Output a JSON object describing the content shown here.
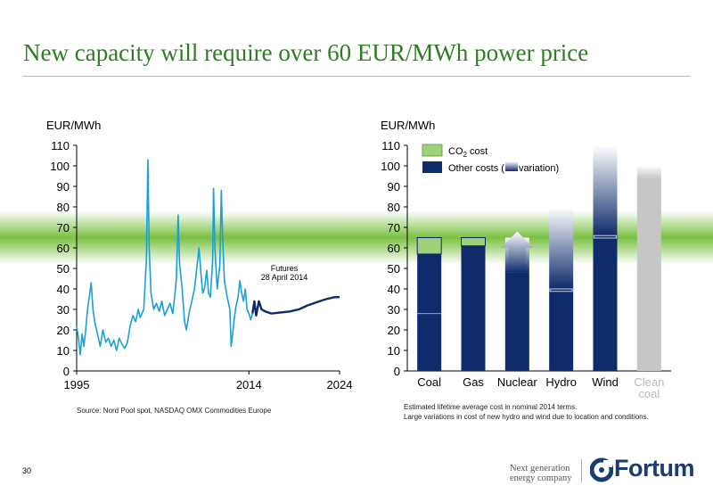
{
  "slide": {
    "title": "New capacity will require over 60 EUR/MWh power price",
    "page_number": "30",
    "source_left": "Source: Nord Pool spot, NASDAQ OMX Commodities Europe",
    "footnote_right": [
      "Estimated lifetime average cost in nominal 2014 terms.",
      "Large variations in cost of new hydro and wind due to location and conditions."
    ],
    "tagline": [
      "Next generation",
      "energy company"
    ],
    "logo_text": "Fortum"
  },
  "colors": {
    "title": "#2e7d23",
    "band": "#7ac142",
    "spot": "#1ba0d4",
    "futures": "#0e2b6b",
    "co2": "#9dd27a",
    "other": "#0e2b6b",
    "clean": "#c6c6c6"
  },
  "chart_data": [
    {
      "type": "line",
      "ylabel": "EUR/MWh",
      "ylim": [
        0,
        110
      ],
      "yticks": [
        0,
        10,
        20,
        30,
        40,
        50,
        60,
        70,
        80,
        90,
        100,
        110
      ],
      "xlim": [
        1995,
        2024
      ],
      "xticks": [
        1995,
        2014,
        2024
      ],
      "band": [
        60,
        70
      ],
      "annotation": [
        "Futures",
        "28 April 2014"
      ],
      "series": [
        {
          "style": "spot",
          "points": [
            [
              1995,
              22
            ],
            [
              1995.2,
              16
            ],
            [
              1995.4,
              8
            ],
            [
              1995.6,
              18
            ],
            [
              1995.8,
              12
            ],
            [
              1996,
              20
            ],
            [
              1996.2,
              30
            ],
            [
              1996.4,
              36
            ],
            [
              1996.6,
              43
            ],
            [
              1996.8,
              30
            ],
            [
              1997,
              24
            ],
            [
              1997.3,
              18
            ],
            [
              1997.6,
              12
            ],
            [
              1997.9,
              20
            ],
            [
              1998.2,
              14
            ],
            [
              1998.5,
              16
            ],
            [
              1998.8,
              12
            ],
            [
              1999.1,
              15
            ],
            [
              1999.4,
              10
            ],
            [
              1999.7,
              16
            ],
            [
              2000,
              13
            ],
            [
              2000.3,
              11
            ],
            [
              2000.6,
              14
            ],
            [
              2000.9,
              22
            ],
            [
              2001.2,
              27
            ],
            [
              2001.5,
              24
            ],
            [
              2001.8,
              30
            ],
            [
              2002,
              26
            ],
            [
              2002.4,
              30
            ],
            [
              2002.7,
              55
            ],
            [
              2002.85,
              103
            ],
            [
              2003,
              60
            ],
            [
              2003.2,
              38
            ],
            [
              2003.5,
              30
            ],
            [
              2003.8,
              33
            ],
            [
              2004.1,
              29
            ],
            [
              2004.4,
              34
            ],
            [
              2004.7,
              27
            ],
            [
              2005,
              30
            ],
            [
              2005.3,
              33
            ],
            [
              2005.6,
              28
            ],
            [
              2005.8,
              36
            ],
            [
              2006,
              45
            ],
            [
              2006.2,
              76
            ],
            [
              2006.35,
              52
            ],
            [
              2006.6,
              42
            ],
            [
              2006.9,
              24
            ],
            [
              2007.1,
              20
            ],
            [
              2007.4,
              28
            ],
            [
              2007.7,
              34
            ],
            [
              2008,
              40
            ],
            [
              2008.3,
              52
            ],
            [
              2008.5,
              60
            ],
            [
              2008.7,
              48
            ],
            [
              2008.9,
              38
            ],
            [
              2009.1,
              40
            ],
            [
              2009.35,
              49
            ],
            [
              2009.55,
              38
            ],
            [
              2009.75,
              36
            ],
            [
              2010,
              54
            ],
            [
              2010.1,
              89
            ],
            [
              2010.25,
              60
            ],
            [
              2010.5,
              40
            ],
            [
              2010.8,
              52
            ],
            [
              2010.95,
              88
            ],
            [
              2011.1,
              65
            ],
            [
              2011.3,
              44
            ],
            [
              2011.6,
              36
            ],
            [
              2011.9,
              30
            ],
            [
              2012.05,
              12
            ],
            [
              2012.2,
              18
            ],
            [
              2012.4,
              26
            ],
            [
              2012.6,
              32
            ],
            [
              2012.8,
              36
            ],
            [
              2013,
              44
            ],
            [
              2013.2,
              38
            ],
            [
              2013.4,
              34
            ],
            [
              2013.6,
              40
            ],
            [
              2013.8,
              30
            ],
            [
              2014,
              28
            ],
            [
              2014.2,
              25
            ],
            [
              2014.4,
              28
            ]
          ]
        },
        {
          "style": "futures",
          "points": [
            [
              2014.4,
              28
            ],
            [
              2014.6,
              34
            ],
            [
              2014.8,
              27
            ],
            [
              2015.1,
              34
            ],
            [
              2015.4,
              30
            ],
            [
              2015.8,
              29
            ],
            [
              2016.5,
              28
            ],
            [
              2017.5,
              28.5
            ],
            [
              2018.5,
              29
            ],
            [
              2019.5,
              30
            ],
            [
              2020.5,
              32
            ],
            [
              2021.5,
              33.5
            ],
            [
              2022.5,
              35
            ],
            [
              2023.5,
              36
            ],
            [
              2024,
              36
            ]
          ]
        }
      ]
    },
    {
      "type": "bar",
      "stacked": true,
      "ylabel": "EUR/MWh",
      "ylim": [
        0,
        110
      ],
      "yticks": [
        0,
        10,
        20,
        30,
        40,
        50,
        60,
        70,
        80,
        90,
        100,
        110
      ],
      "band": [
        60,
        70
      ],
      "categories": [
        "Coal",
        "Gas",
        "Nuclear",
        "Hydro",
        "Wind",
        "Clean coal"
      ],
      "legend": [
        {
          "label": "CO",
          "sub": "2",
          "tail": " cost"
        },
        {
          "label": "Other costs (",
          "tail": " variation)"
        }
      ],
      "bars": [
        {
          "other": 57,
          "co2": 8,
          "marker": 28
        },
        {
          "other": 61,
          "co2": 4
        },
        {
          "other": 48,
          "range": [
            48,
            65
          ]
        },
        {
          "other": 40,
          "range": [
            40,
            80
          ]
        },
        {
          "other": 66,
          "range": [
            66,
            110
          ]
        },
        {
          "other": 94,
          "range": [
            94,
            100
          ]
        }
      ]
    }
  ]
}
